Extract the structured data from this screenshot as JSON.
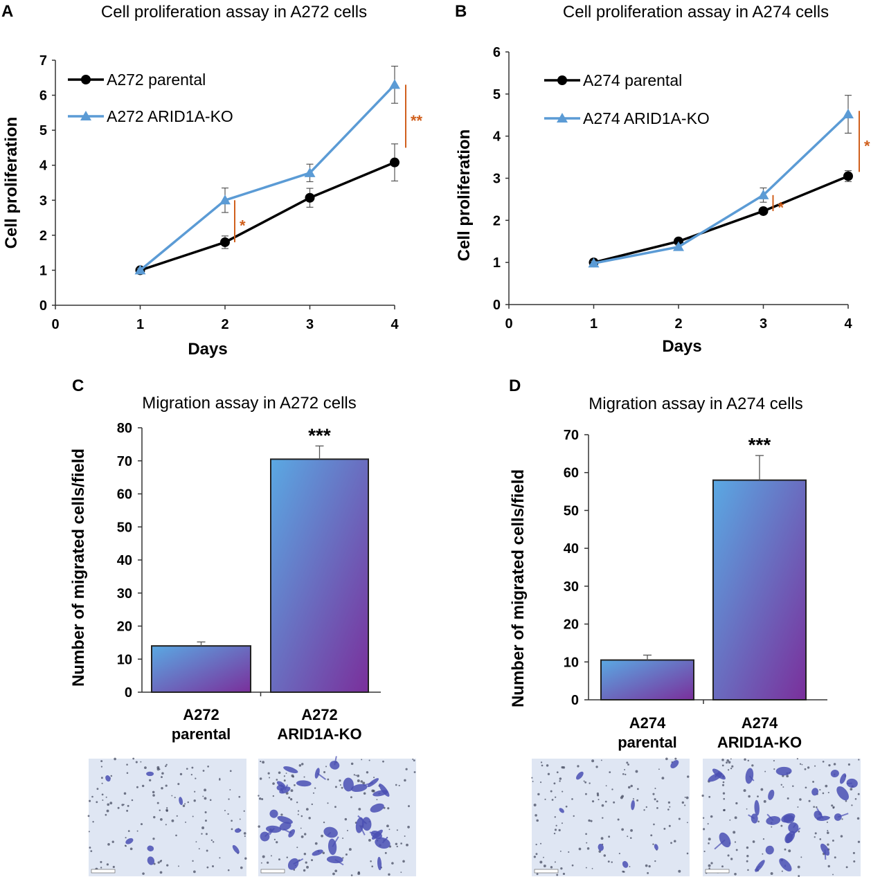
{
  "colors": {
    "parental": "#000000",
    "ko": "#5b9bd5",
    "significance": "#d05f1c",
    "bar_top": "#5aa9e3",
    "bar_bottom": "#7a2f9b",
    "micrograph_bg": "#dfe6f3",
    "cell_stain": "#4a4fb3"
  },
  "chart_data": [
    {
      "id": "A",
      "type": "line",
      "panel": "A",
      "title": "Cell proliferation assay in A272 cells",
      "xlabel": "Days",
      "ylabel": "Cell proliferation",
      "xlim": [
        0,
        4
      ],
      "ylim": [
        0,
        7
      ],
      "xticks": [
        0,
        1,
        2,
        3,
        4
      ],
      "yticks": [
        0,
        1,
        2,
        3,
        4,
        5,
        6,
        7
      ],
      "legend_position": "top-left",
      "series": [
        {
          "name": "A272 parental",
          "marker": "circle",
          "x": [
            1,
            2,
            3,
            4
          ],
          "values": [
            1.0,
            1.8,
            3.07,
            4.08
          ],
          "errors": [
            0.05,
            0.18,
            0.27,
            0.53
          ]
        },
        {
          "name": "A272 ARID1A-KO",
          "marker": "triangle",
          "x": [
            1,
            2,
            3,
            4
          ],
          "values": [
            1.0,
            3.0,
            3.78,
            6.3
          ],
          "errors": [
            0.05,
            0.35,
            0.25,
            0.53
          ]
        }
      ],
      "annotations": [
        {
          "text": "*",
          "x": 2,
          "from": 1.8,
          "to": 3.0
        },
        {
          "text": "**",
          "x": 4,
          "from": 4.5,
          "to": 6.3
        }
      ]
    },
    {
      "id": "B",
      "type": "line",
      "panel": "B",
      "title": "Cell proliferation assay in A274 cells",
      "xlabel": "Days",
      "ylabel": "Cell proliferation",
      "xlim": [
        0,
        4
      ],
      "ylim": [
        0,
        6
      ],
      "xticks": [
        0,
        1,
        2,
        3,
        4
      ],
      "yticks": [
        0,
        1,
        2,
        3,
        4,
        5,
        6
      ],
      "legend_position": "top-left",
      "series": [
        {
          "name": "A274 parental",
          "marker": "circle",
          "x": [
            1,
            2,
            3,
            4
          ],
          "values": [
            1.0,
            1.5,
            2.22,
            3.05
          ],
          "errors": [
            0.08,
            0.06,
            0.05,
            0.13
          ]
        },
        {
          "name": "A274 ARID1A-KO",
          "marker": "triangle",
          "x": [
            1,
            2,
            3,
            4
          ],
          "values": [
            0.98,
            1.37,
            2.6,
            4.52
          ],
          "errors": [
            0.05,
            0.05,
            0.17,
            0.45
          ]
        }
      ],
      "annotations": [
        {
          "text": "*",
          "x": 3,
          "from": 2.22,
          "to": 2.6
        },
        {
          "text": "*",
          "x": 4,
          "from": 3.15,
          "to": 4.6
        }
      ]
    },
    {
      "id": "C",
      "type": "bar",
      "panel": "C",
      "title": "Migration assay in A272 cells",
      "ylabel": "Number of migrated cells/field",
      "ylim": [
        0,
        80
      ],
      "yticks": [
        0,
        10,
        20,
        30,
        40,
        50,
        60,
        70,
        80
      ],
      "categories": [
        [
          "A272",
          "parental"
        ],
        [
          "A272",
          "ARID1A-KO"
        ]
      ],
      "values": [
        14,
        70.5
      ],
      "errors": [
        1.2,
        4.0
      ],
      "annotations": [
        {
          "text": "***",
          "category_index": 1
        }
      ]
    },
    {
      "id": "D",
      "type": "bar",
      "panel": "D",
      "title": "Migration assay in A274 cells",
      "ylabel": "Number of migrated cells/field",
      "ylim": [
        0,
        70
      ],
      "yticks": [
        0,
        10,
        20,
        30,
        40,
        50,
        60,
        70
      ],
      "categories": [
        [
          "A274",
          "parental"
        ],
        [
          "A274",
          "ARID1A-KO"
        ]
      ],
      "values": [
        10.5,
        58
      ],
      "errors": [
        1.3,
        6.5
      ],
      "annotations": [
        {
          "text": "***",
          "category_index": 1
        }
      ]
    }
  ],
  "micrographs": [
    {
      "name": "micrograph-a272-parental",
      "cells": 8,
      "density": "low"
    },
    {
      "name": "micrograph-a272-arid1a-ko",
      "cells": 30,
      "density": "high"
    },
    {
      "name": "micrograph-a274-parental",
      "cells": 7,
      "density": "low"
    },
    {
      "name": "micrograph-a274-arid1a-ko",
      "cells": 26,
      "density": "high"
    }
  ]
}
